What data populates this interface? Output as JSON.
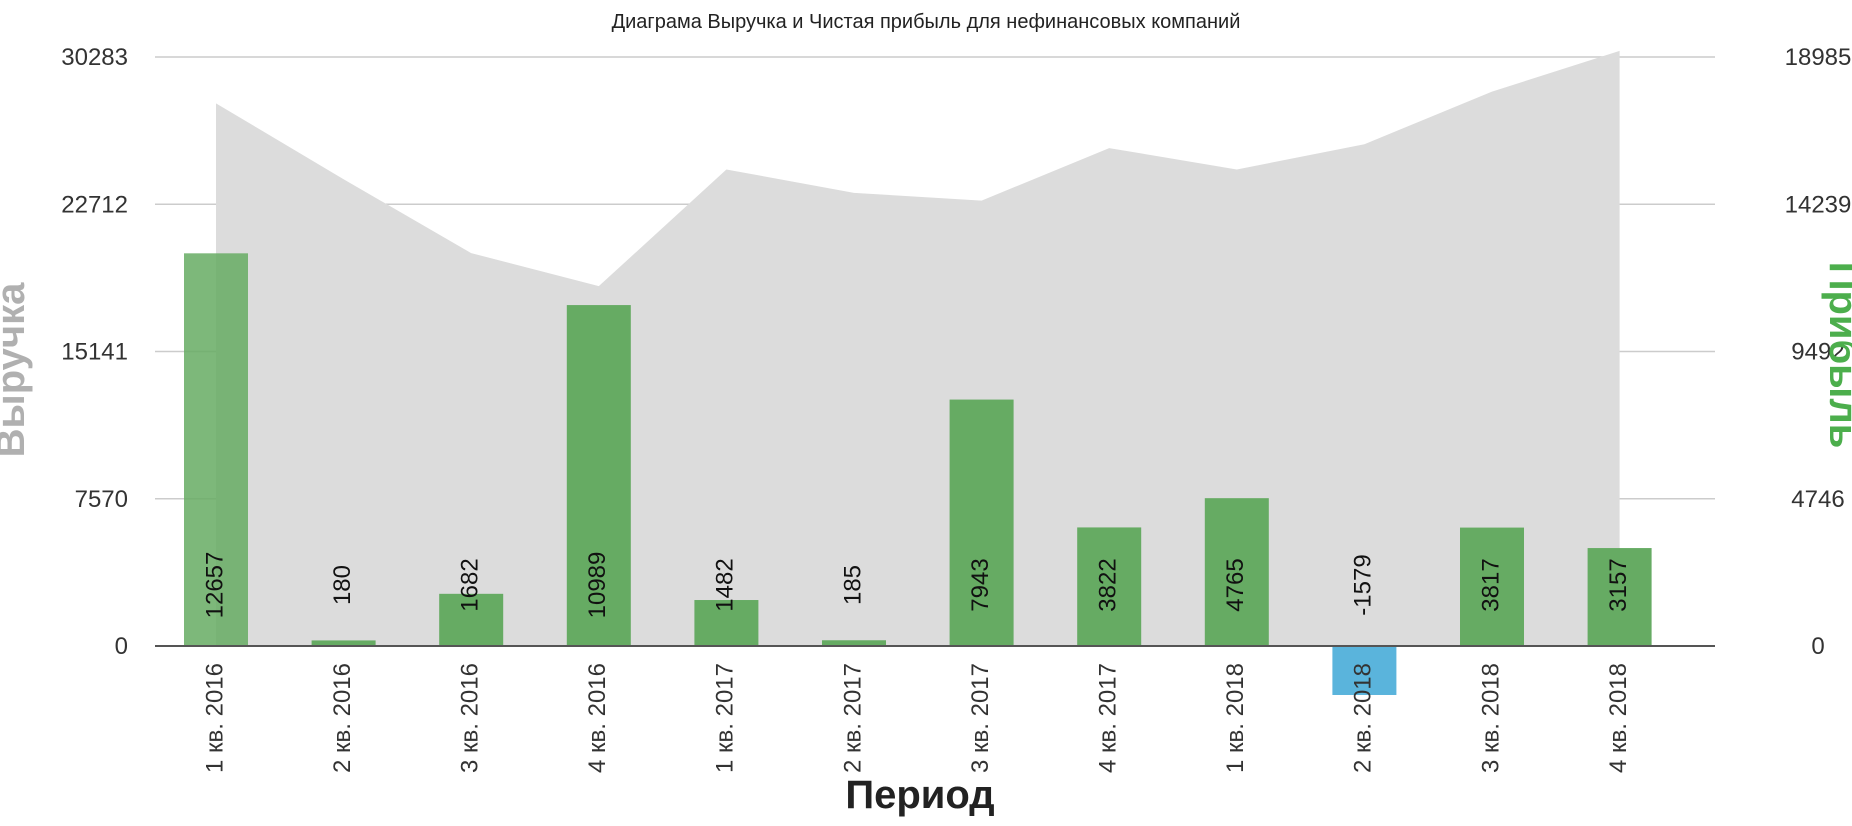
{
  "chart_data": {
    "type": "bar",
    "title": "Диаграма Выручка и Чистая прибыль для нефинансовых компаний",
    "xlabel": "Период",
    "ylabel_left": "Выручка",
    "ylabel_right": "Прибыль",
    "categories": [
      "1 кв. 2016",
      "2 кв. 2016",
      "3 кв. 2016",
      "4 кв. 2016",
      "1 кв. 2017",
      "2 кв. 2017",
      "3 кв. 2017",
      "4 кв. 2017",
      "1 кв. 2018",
      "2 кв. 2018",
      "3 кв. 2018",
      "4 кв. 2018"
    ],
    "y_left": {
      "ticks": [
        "0",
        "7570",
        "15141",
        "22712",
        "30283"
      ],
      "range": [
        0,
        30283
      ]
    },
    "y_right": {
      "ticks": [
        "0",
        "4746",
        "9492",
        "14239",
        "18985"
      ],
      "range": [
        0,
        18985
      ]
    },
    "grid": true,
    "series": [
      {
        "kind": "area",
        "axis": "left",
        "color": "#dcdcdc",
        "values": [
          27900,
          24000,
          20200,
          18500,
          24500,
          23300,
          22900,
          25600,
          24500,
          25800,
          28500,
          30600
        ]
      },
      {
        "kind": "bar",
        "axis": "right",
        "positive_color": "#66ab63",
        "negative_color": "#5ab4dc",
        "values": [
          12657,
          180,
          1682,
          10989,
          1482,
          185,
          7943,
          3822,
          4765,
          -1579,
          3817,
          3157
        ],
        "labels": [
          "12657",
          "180",
          "1682",
          "10989",
          "1482",
          "185",
          "7943",
          "3822",
          "4765",
          "-1579",
          "3817",
          "3157"
        ]
      }
    ],
    "colors": {
      "left_axis_title": "#b0b0b0",
      "right_axis_title": "#4cae4c",
      "grid": "#cccccc",
      "text": "#333333"
    }
  }
}
